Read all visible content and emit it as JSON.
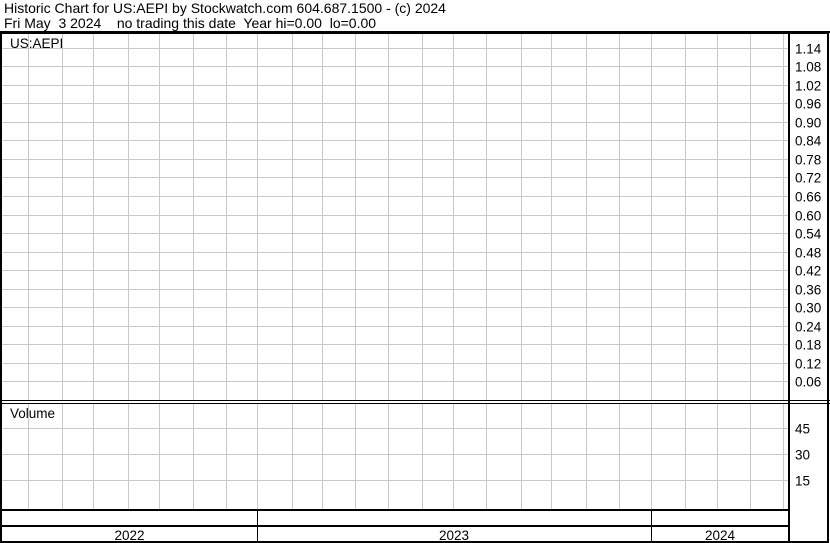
{
  "header": {
    "title": "Historic Chart for US:AEPI by Stockwatch.com 604.687.1500 - (c) 2024",
    "subtitle": "Fri May  3 2024    no trading this date  Year hi=0.00  lo=0.00"
  },
  "chart_data": [
    {
      "type": "line",
      "title": "US:AEPI",
      "ylim": [
        0,
        1.2
      ],
      "y_ticks": [
        "1.14",
        "1.08",
        "1.02",
        "0.96",
        "0.90",
        "0.84",
        "0.78",
        "0.72",
        "0.66",
        "0.60",
        "0.54",
        "0.48",
        "0.42",
        "0.36",
        "0.30",
        "0.24",
        "0.18",
        "0.12",
        "0.06"
      ],
      "series": [],
      "grid": true,
      "axis_position": "right"
    },
    {
      "type": "bar",
      "title": "Volume",
      "ylim": [
        0,
        50
      ],
      "y_ticks": [
        "45",
        "30",
        "15"
      ],
      "series": [],
      "grid": true,
      "axis_position": "right"
    }
  ],
  "x_axis": {
    "years": [
      "2022",
      "2023",
      "2024"
    ]
  },
  "colors": {
    "grid": "#c8c8c8",
    "frame": "#000000",
    "background": "#ffffff"
  }
}
